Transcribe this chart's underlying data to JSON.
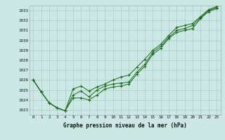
{
  "title": "Graphe pression niveau de la mer (hPa)",
  "background_color": "#cce8e4",
  "grid_color": "#aacccc",
  "line_color": "#1a6b1a",
  "x_values": [
    0,
    1,
    2,
    3,
    4,
    5,
    6,
    7,
    8,
    9,
    10,
    11,
    12,
    13,
    14,
    15,
    16,
    17,
    18,
    19,
    20,
    21,
    22,
    23
  ],
  "x_labels": [
    "0",
    "1",
    "2",
    "3",
    "4",
    "5",
    "6",
    "7",
    "8",
    "9",
    "10",
    "11",
    "12",
    "13",
    "14",
    "15",
    "16",
    "17",
    "18",
    "19",
    "20",
    "21",
    "22",
    "23"
  ],
  "ylim": [
    1022.5,
    1033.5
  ],
  "yticks": [
    1023,
    1024,
    1025,
    1026,
    1027,
    1028,
    1029,
    1030,
    1031,
    1032,
    1033
  ],
  "line1": [
    1026.0,
    1024.8,
    1023.7,
    1023.2,
    1022.9,
    1025.1,
    1025.4,
    1024.9,
    1025.3,
    1025.6,
    1026.0,
    1026.3,
    1026.5,
    1027.3,
    1028.1,
    1029.0,
    1029.6,
    1030.5,
    1031.3,
    1031.5,
    1031.7,
    1032.4,
    1033.1,
    1033.4
  ],
  "line2": [
    1026.0,
    1024.8,
    1023.7,
    1023.2,
    1022.9,
    1024.5,
    1024.9,
    1024.3,
    1025.0,
    1025.4,
    1025.6,
    1025.7,
    1025.8,
    1026.8,
    1027.6,
    1028.8,
    1029.4,
    1030.3,
    1031.0,
    1031.2,
    1031.5,
    1032.3,
    1033.0,
    1033.3
  ],
  "line3": [
    1026.0,
    1024.8,
    1023.7,
    1023.2,
    1022.9,
    1024.2,
    1024.2,
    1024.0,
    1024.5,
    1025.1,
    1025.3,
    1025.4,
    1025.6,
    1026.6,
    1027.4,
    1028.6,
    1029.2,
    1030.2,
    1030.8,
    1031.0,
    1031.2,
    1032.2,
    1032.9,
    1033.2
  ]
}
